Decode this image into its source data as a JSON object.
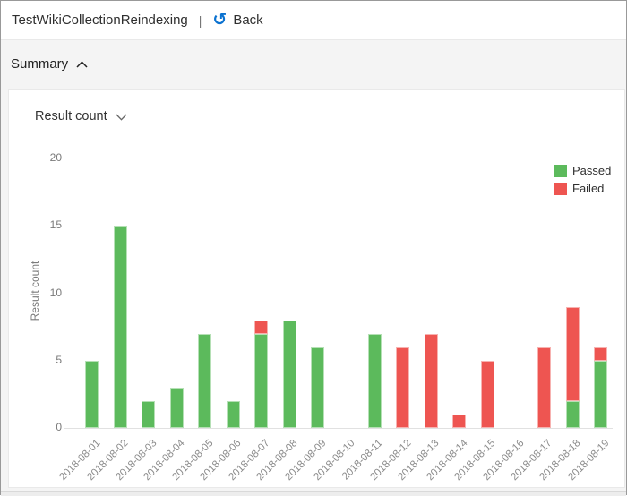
{
  "header": {
    "title": "TestWikiCollectionReindexing",
    "separator": "|",
    "back_label": "Back",
    "back_icon": "↺"
  },
  "summary": {
    "label": "Summary"
  },
  "panel": {
    "metric_label": "Result count"
  },
  "colors": {
    "accent_blue": "#0b72d0",
    "passed_green": "#5cba5c",
    "failed_red": "#ee5551",
    "axis_gray": "#7a7a7a"
  },
  "chart_data": {
    "type": "bar",
    "stacked": true,
    "title": "",
    "xlabel": "",
    "ylabel": "Result count",
    "ylim": [
      0,
      20
    ],
    "yticks": [
      0,
      5,
      10,
      15,
      20
    ],
    "grid": false,
    "legend_position": "top-right",
    "categories": [
      "2018-08-01",
      "2018-08-02",
      "2018-08-03",
      "2018-08-04",
      "2018-08-05",
      "2018-08-06",
      "2018-08-07",
      "2018-08-08",
      "2018-08-09",
      "2018-08-10",
      "2018-08-11",
      "2018-08-12",
      "2018-08-13",
      "2018-08-14",
      "2018-08-15",
      "2018-08-16",
      "2018-08-17",
      "2018-08-18",
      "2018-08-19"
    ],
    "series": [
      {
        "name": "Passed",
        "color": "#5cba5c",
        "values": [
          5,
          15,
          2,
          3,
          7,
          2,
          7,
          8,
          6,
          0,
          7,
          0,
          0,
          0,
          0,
          0,
          0,
          2,
          5
        ]
      },
      {
        "name": "Failed",
        "color": "#ee5551",
        "values": [
          0,
          0,
          0,
          0,
          0,
          0,
          1,
          0,
          0,
          0,
          0,
          6,
          7,
          1,
          5,
          0,
          6,
          7,
          1
        ]
      }
    ]
  }
}
